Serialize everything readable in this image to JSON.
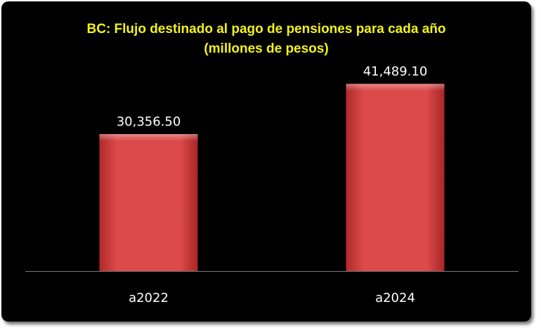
{
  "chart_data": {
    "type": "bar",
    "title_line1": "BC: Flujo destinado al pago de pensiones para cada año",
    "title_line2": "(millones de pesos)",
    "categories": [
      "a2022",
      "a2024"
    ],
    "values": [
      30356.5,
      41489.1
    ],
    "value_labels": [
      "30,356.50",
      "41,489.10"
    ],
    "xlabel": "",
    "ylabel": "",
    "ylim": [
      0,
      47000
    ],
    "grid": false,
    "legend": "none",
    "colors": {
      "background": "#000000",
      "bar": "#d94040",
      "title": "#f2f21a",
      "text": "#ffffff",
      "axis": "#7a7a7a"
    }
  }
}
